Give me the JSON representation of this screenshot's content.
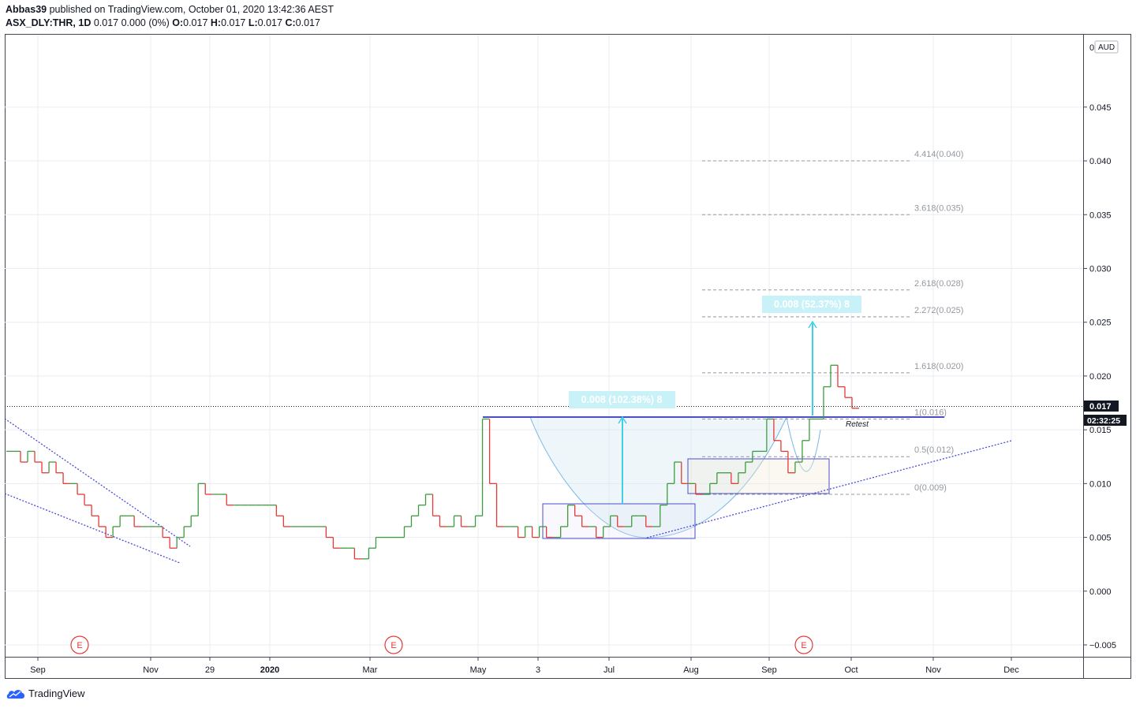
{
  "header": {
    "author": "Abbas39",
    "published_text": "published on TradingView.com, October 01, 2020 13:42:36 AEST",
    "symbol": "ASX_DLY:THR, 1D",
    "change": "0.017 0.000 (0%)",
    "ohlc": {
      "o_label": "O:",
      "o": "0.017",
      "h_label": "H:",
      "h": "0.017",
      "l_label": "L:",
      "l": "0.017",
      "c_label": "C:",
      "c": "0.017"
    }
  },
  "footer": {
    "brand": "TradingView"
  },
  "colors": {
    "up": "#26a69a",
    "up_bar": "#3d9b3d",
    "down": "#e53935",
    "grid": "#e9edf2",
    "fib": "#9598a1",
    "box": "#4d4dc9",
    "measure": "#3fd0e6",
    "trend": "#4a4ad9"
  },
  "chart_data": {
    "type": "line",
    "currency": "AUD",
    "y_axis": {
      "ticks": [
        "0.045",
        "0.040",
        "0.035",
        "0.030",
        "0.025",
        "0.020",
        "0.015",
        "0.010",
        "0.005",
        "0.000",
        "−0.005"
      ],
      "top_label": "0",
      "range": [
        -0.0055,
        0.0505
      ]
    },
    "x_axis": {
      "ticks": [
        "Sep",
        "Nov",
        "29",
        "2020",
        "Mar",
        "May",
        "3",
        "Jul",
        "Aug",
        "Sep",
        "Oct",
        "Nov",
        "Dec"
      ]
    },
    "last_price": "0.017",
    "countdown": "02:32:25",
    "fib_levels": [
      {
        "label": "4.414(0.040)",
        "value": 0.04
      },
      {
        "label": "3.618(0.035)",
        "value": 0.035
      },
      {
        "label": "2.618(0.028)",
        "value": 0.028
      },
      {
        "label": "2.272(0.025)",
        "value": 0.0255
      },
      {
        "label": "1.618(0.020)",
        "value": 0.0203
      },
      {
        "label": "1(0.016)",
        "value": 0.016
      },
      {
        "label": "0.5(0.012)",
        "value": 0.0125
      },
      {
        "label": "0(0.009)",
        "value": 0.009
      }
    ],
    "measurements": [
      {
        "label": "0.008 (102.38%) 8",
        "from": 0.008,
        "to": 0.0162
      },
      {
        "label": "0.008 (52.37%) 8",
        "from": 0.0162,
        "to": 0.0246
      }
    ],
    "annotations": {
      "retest": "Retest",
      "earnings": [
        "E",
        "E",
        "E"
      ]
    },
    "series": [
      {
        "name": "THR",
        "values": [
          0.013,
          0.013,
          0.012,
          0.013,
          0.012,
          0.011,
          0.012,
          0.011,
          0.01,
          0.01,
          0.009,
          0.008,
          0.007,
          0.006,
          0.005,
          0.006,
          0.007,
          0.007,
          0.006,
          0.006,
          0.006,
          0.006,
          0.005,
          0.004,
          0.005,
          0.006,
          0.007,
          0.01,
          0.009,
          0.009,
          0.009,
          0.008,
          0.008,
          0.008,
          0.008,
          0.008,
          0.008,
          0.008,
          0.007,
          0.006,
          0.006,
          0.006,
          0.006,
          0.006,
          0.006,
          0.005,
          0.004,
          0.004,
          0.004,
          0.003,
          0.003,
          0.004,
          0.005,
          0.005,
          0.005,
          0.005,
          0.006,
          0.007,
          0.008,
          0.009,
          0.007,
          0.006,
          0.006,
          0.007,
          0.006,
          0.006,
          0.007,
          0.016,
          0.01,
          0.006,
          0.006,
          0.006,
          0.005,
          0.006,
          0.005,
          0.006,
          0.005,
          0.005,
          0.006,
          0.008,
          0.007,
          0.006,
          0.006,
          0.005,
          0.006,
          0.007,
          0.006,
          0.006,
          0.007,
          0.007,
          0.006,
          0.006,
          0.008,
          0.01,
          0.012,
          0.01,
          0.01,
          0.009,
          0.009,
          0.01,
          0.011,
          0.011,
          0.01,
          0.011,
          0.012,
          0.013,
          0.013,
          0.016,
          0.014,
          0.013,
          0.011,
          0.012,
          0.014,
          0.016,
          0.016,
          0.019,
          0.021,
          0.019,
          0.018,
          0.017
        ]
      }
    ]
  }
}
